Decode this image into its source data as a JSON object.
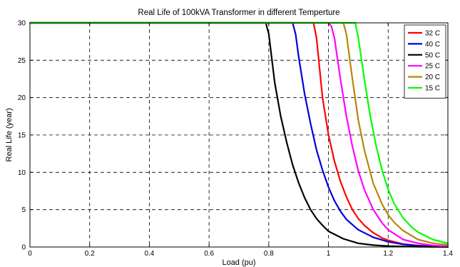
{
  "chart_data": {
    "type": "line",
    "title": "Real Life of 100kVA Transformer in different Temperture",
    "xlabel": "Load (pu)",
    "ylabel": "Real Life (year)",
    "xlim": [
      0,
      1.4
    ],
    "ylim": [
      0,
      30
    ],
    "xticks": [
      0,
      0.2,
      0.4,
      0.6,
      0.8,
      1,
      1.2,
      1.4
    ],
    "xtick_labels": [
      "0",
      "0.2",
      "0.4",
      "0.6",
      "0.8",
      "1",
      "1.2",
      "1.4"
    ],
    "yticks": [
      0,
      5,
      10,
      15,
      20,
      25,
      30
    ],
    "ytick_labels": [
      "0",
      "5",
      "10",
      "15",
      "20",
      "25",
      "30"
    ],
    "grid": true,
    "legend_position": "top-right",
    "series": [
      {
        "name": "32 C",
        "color": "#ff0000",
        "x": [
          0,
          0.95,
          0.96,
          0.98,
          1.0,
          1.02,
          1.04,
          1.06,
          1.08,
          1.1,
          1.12,
          1.15,
          1.18,
          1.2,
          1.25,
          1.3,
          1.35,
          1.4
        ],
        "y": [
          30,
          30,
          28,
          20,
          15,
          11.5,
          8.8,
          6.7,
          5.0,
          3.8,
          2.9,
          1.9,
          1.2,
          0.9,
          0.4,
          0.2,
          0.1,
          0.05
        ]
      },
      {
        "name": "40 C",
        "color": "#0000dd",
        "x": [
          0,
          0.88,
          0.89,
          0.9,
          0.92,
          0.94,
          0.96,
          0.98,
          1.0,
          1.02,
          1.04,
          1.06,
          1.1,
          1.15,
          1.2,
          1.25,
          1.3,
          1.4
        ],
        "y": [
          30,
          30,
          28.5,
          25.5,
          20.5,
          16.5,
          13.0,
          10.3,
          8.0,
          6.2,
          4.8,
          3.7,
          2.3,
          1.3,
          0.7,
          0.35,
          0.15,
          0.03
        ]
      },
      {
        "name": "50 C",
        "color": "#000000",
        "x": [
          0,
          0.79,
          0.8,
          0.82,
          0.84,
          0.86,
          0.88,
          0.9,
          0.92,
          0.94,
          0.96,
          0.98,
          1.0,
          1.05,
          1.1,
          1.15,
          1.2,
          1.3,
          1.4
        ],
        "y": [
          30,
          30,
          28.5,
          22.0,
          17.5,
          14.0,
          11.0,
          8.6,
          6.6,
          5.0,
          3.8,
          2.9,
          2.1,
          1.1,
          0.5,
          0.25,
          0.12,
          0.03,
          0.01
        ]
      },
      {
        "name": "25 C",
        "color": "#ff00ff",
        "x": [
          0,
          1.0,
          1.01,
          1.02,
          1.04,
          1.06,
          1.08,
          1.1,
          1.12,
          1.15,
          1.18,
          1.2,
          1.25,
          1.3,
          1.35,
          1.4
        ],
        "y": [
          30,
          30,
          29.5,
          28,
          22.5,
          17.5,
          13.5,
          10.2,
          7.7,
          5.0,
          3.2,
          2.3,
          1.0,
          0.5,
          0.2,
          0.1
        ]
      },
      {
        "name": "20 C",
        "color": "#b8860b",
        "x": [
          0,
          1.05,
          1.06,
          1.08,
          1.1,
          1.12,
          1.15,
          1.18,
          1.2,
          1.22,
          1.25,
          1.3,
          1.35,
          1.4
        ],
        "y": [
          30,
          30,
          28.5,
          22.5,
          17.0,
          13.0,
          8.5,
          5.7,
          4.3,
          3.3,
          2.2,
          1.0,
          0.5,
          0.3
        ]
      },
      {
        "name": "15 C",
        "color": "#00ff00",
        "x": [
          0,
          1.09,
          1.1,
          1.12,
          1.14,
          1.16,
          1.18,
          1.2,
          1.22,
          1.25,
          1.28,
          1.3,
          1.35,
          1.4
        ],
        "y": [
          30,
          30,
          28,
          22.5,
          17.5,
          13.5,
          10.2,
          7.7,
          5.8,
          3.9,
          2.6,
          2.0,
          1.0,
          0.5
        ]
      }
    ]
  }
}
